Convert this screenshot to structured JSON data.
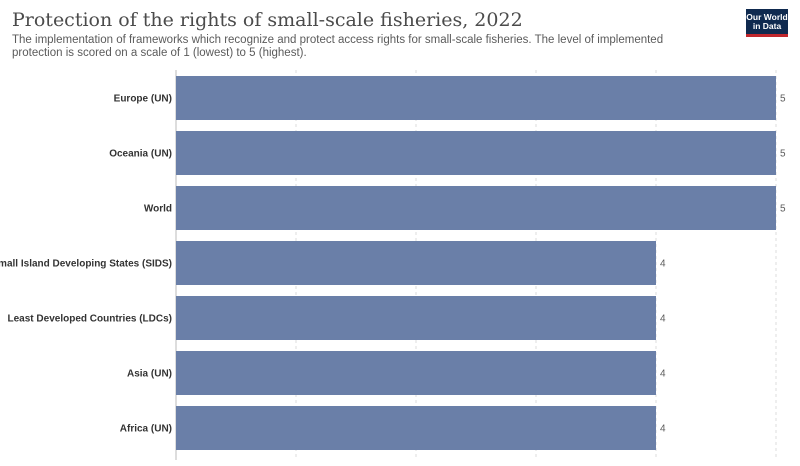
{
  "header": {
    "title": "Protection of the rights of small-scale fisheries, 2022",
    "subtitle": "The implementation of frameworks which recognize and protect access rights for small-scale fisheries. The level of implemented protection is scored on a scale of 1 (lowest) to 5 (highest).",
    "logo_text": "Our World in Data"
  },
  "colors": {
    "bar": "#6a7fa8",
    "grid": "#dddddd",
    "logo_bg": "#0f2a4f",
    "logo_accent": "#c0272d"
  },
  "chart_data": {
    "type": "bar",
    "orientation": "horizontal",
    "categories": [
      "Europe (UN)",
      "Oceania (UN)",
      "World",
      "Small Island Developing States (SIDS)",
      "Least Developed Countries (LDCs)",
      "Asia (UN)",
      "Africa (UN)"
    ],
    "values": [
      5,
      5,
      5,
      4,
      4,
      4,
      4
    ],
    "title": "Protection of the rights of small-scale fisheries, 2022",
    "xlim": [
      0,
      5
    ],
    "grid": true
  }
}
